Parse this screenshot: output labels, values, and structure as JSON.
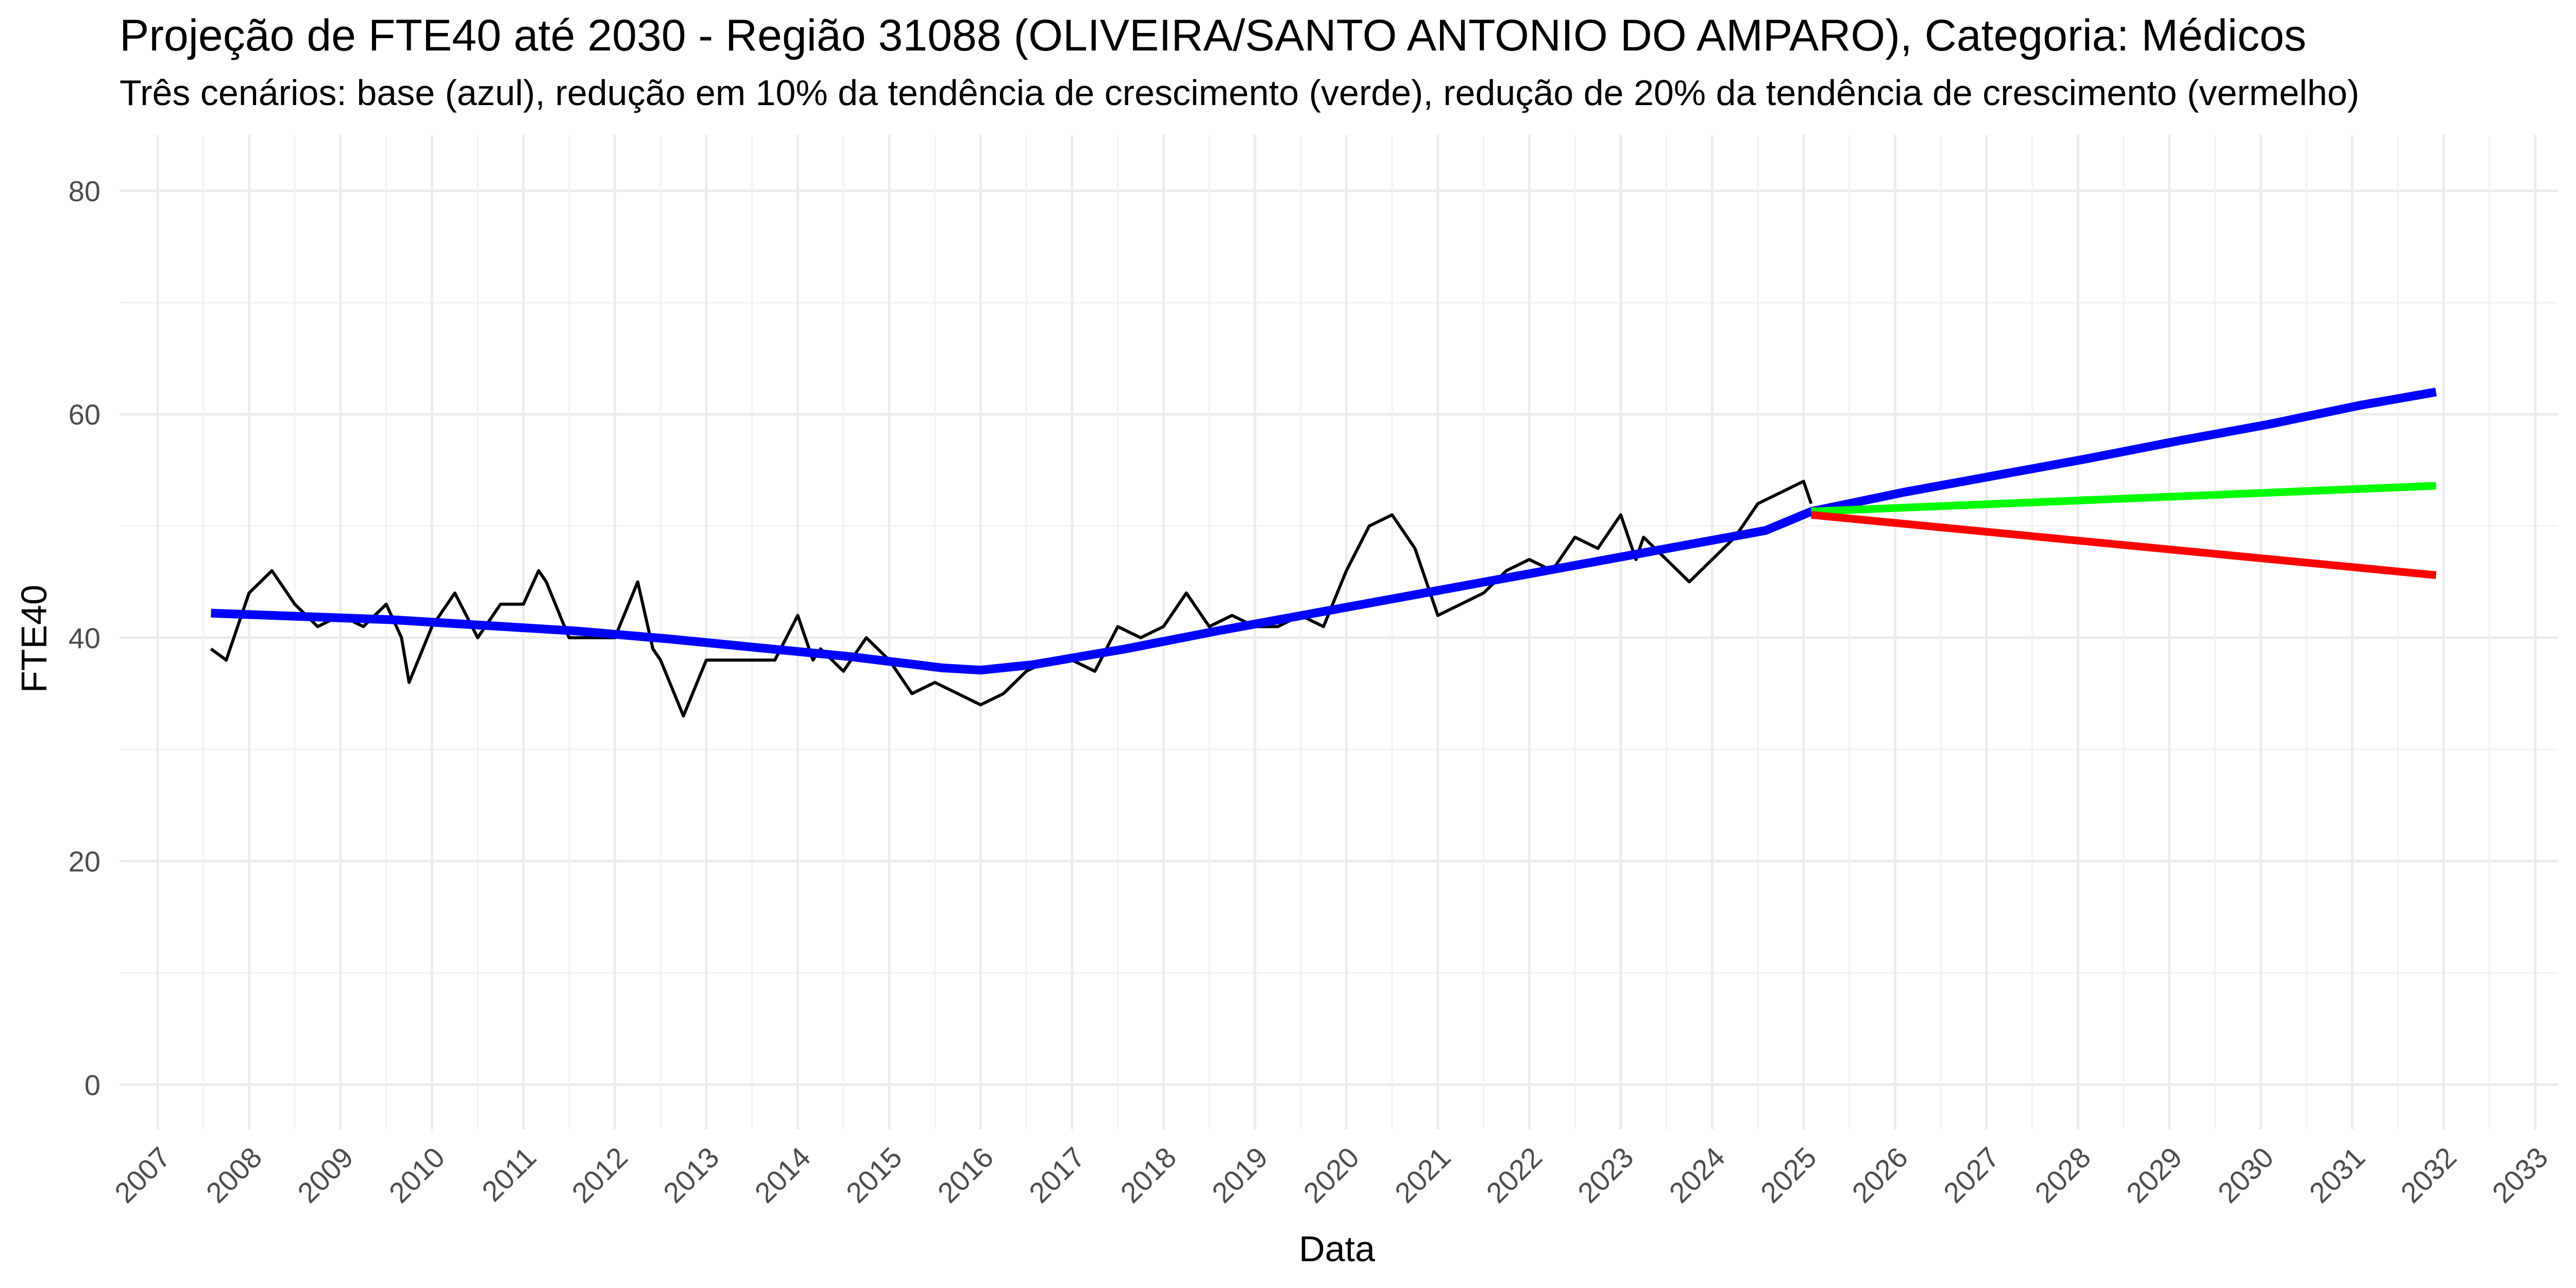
{
  "chart_data": {
    "type": "line",
    "title": "Projeção de FTE40 até 2030 - Região 31088 (OLIVEIRA/SANTO ANTONIO DO AMPARO), Categoria: Médicos",
    "subtitle": "Três cenários: base (azul), redução em 10% da tendência de crescimento (verde), redução de 20% da tendência de crescimento (vermelho)",
    "xlabel": "Data",
    "ylabel": "FTE40",
    "xlim": [
      "2006-08-01",
      "2033-04-01"
    ],
    "ylim": [
      -4,
      85
    ],
    "y_ticks": [
      0,
      20,
      40,
      60,
      80
    ],
    "x_ticks": [
      "2007",
      "2008",
      "2009",
      "2010",
      "2011",
      "2012",
      "2013",
      "2014",
      "2015",
      "2016",
      "2017",
      "2018",
      "2019",
      "2020",
      "2021",
      "2022",
      "2023",
      "2024",
      "2025",
      "2026",
      "2027",
      "2028",
      "2029",
      "2030",
      "2031",
      "2032",
      "2033"
    ],
    "grid": true,
    "legend": "none",
    "series": [
      {
        "color": "#000000",
        "x": [
          "2007-08-01",
          "2007-10-01",
          "2008-01-01",
          "2008-04-01",
          "2008-07-01",
          "2008-10-01",
          "2009-01-01",
          "2009-04-01",
          "2009-07-01",
          "2009-09-01",
          "2009-10-01",
          "2010-01-01",
          "2010-04-01",
          "2010-07-01",
          "2010-09-01",
          "2010-10-01",
          "2011-01-01",
          "2011-03-01",
          "2011-04-01",
          "2011-07-01",
          "2011-10-01",
          "2012-01-01",
          "2012-04-01",
          "2012-06-01",
          "2012-07-01",
          "2012-10-01",
          "2013-01-01",
          "2013-04-01",
          "2013-07-01",
          "2013-10-01",
          "2014-01-01",
          "2014-03-01",
          "2014-04-01",
          "2014-07-01",
          "2014-10-01",
          "2015-01-01",
          "2015-04-01",
          "2015-07-01",
          "2015-10-01",
          "2016-01-01",
          "2016-04-01",
          "2016-07-01",
          "2016-10-01",
          "2017-01-01",
          "2017-04-01",
          "2017-07-01",
          "2017-10-01",
          "2018-01-01",
          "2018-04-01",
          "2018-07-01",
          "2018-10-01",
          "2019-01-01",
          "2019-04-01",
          "2019-07-01",
          "2019-10-01",
          "2020-01-01",
          "2020-04-01",
          "2020-07-01",
          "2020-10-01",
          "2021-01-01",
          "2021-04-01",
          "2021-07-01",
          "2021-10-01",
          "2022-01-01",
          "2022-04-01",
          "2022-07-01",
          "2022-10-01",
          "2023-01-01",
          "2023-03-01",
          "2023-04-01",
          "2023-07-01",
          "2023-10-01",
          "2024-01-01",
          "2024-04-01",
          "2024-07-01",
          "2024-10-01",
          "2025-01-01",
          "2025-02-01"
        ],
        "values": [
          39,
          38,
          44,
          46,
          43,
          41,
          42,
          41,
          43,
          40,
          36,
          41,
          44,
          40,
          42,
          43,
          43,
          46,
          45,
          40,
          40,
          40,
          45,
          39,
          38,
          33,
          38,
          38,
          38,
          38,
          42,
          38,
          39,
          37,
          40,
          38,
          35,
          36,
          35,
          34,
          35,
          37,
          38,
          38,
          37,
          41,
          40,
          41,
          44,
          41,
          42,
          41,
          41,
          42,
          41,
          46,
          50,
          51,
          48,
          42,
          43,
          44,
          46,
          47,
          46,
          49,
          48,
          51,
          47,
          49,
          47,
          45,
          47,
          49,
          52,
          53,
          54,
          52
        ]
      },
      {
        "color": "#0000ff",
        "x": [
          "2007-08-01",
          "2008-08-01",
          "2009-08-01",
          "2010-08-01",
          "2011-08-01",
          "2012-08-01",
          "2013-08-01",
          "2014-08-01",
          "2015-08-01",
          "2016-01-01",
          "2016-08-01",
          "2017-08-01",
          "2018-08-01",
          "2019-08-01",
          "2020-08-01",
          "2021-08-01",
          "2022-08-01",
          "2023-08-01",
          "2024-08-01",
          "2025-02-01",
          "2026-02-01",
          "2027-02-01",
          "2028-02-01",
          "2029-02-01",
          "2030-02-01",
          "2031-02-01",
          "2031-12-01"
        ],
        "values": [
          42.2,
          41.9,
          41.6,
          41.1,
          40.6,
          39.9,
          39.1,
          38.3,
          37.3,
          37.1,
          37.6,
          39.0,
          40.6,
          42.1,
          43.6,
          45.1,
          46.6,
          48.1,
          49.6,
          51.3,
          53.0,
          54.5,
          56.0,
          57.6,
          59.1,
          60.8,
          62.0
        ]
      },
      {
        "color": "#00ff00",
        "x": [
          "2025-02-01",
          "2031-12-01"
        ],
        "values": [
          51.3,
          53.6
        ]
      },
      {
        "color": "#ff0000",
        "x": [
          "2025-02-01",
          "2031-12-01"
        ],
        "values": [
          51.0,
          45.6
        ]
      }
    ]
  }
}
